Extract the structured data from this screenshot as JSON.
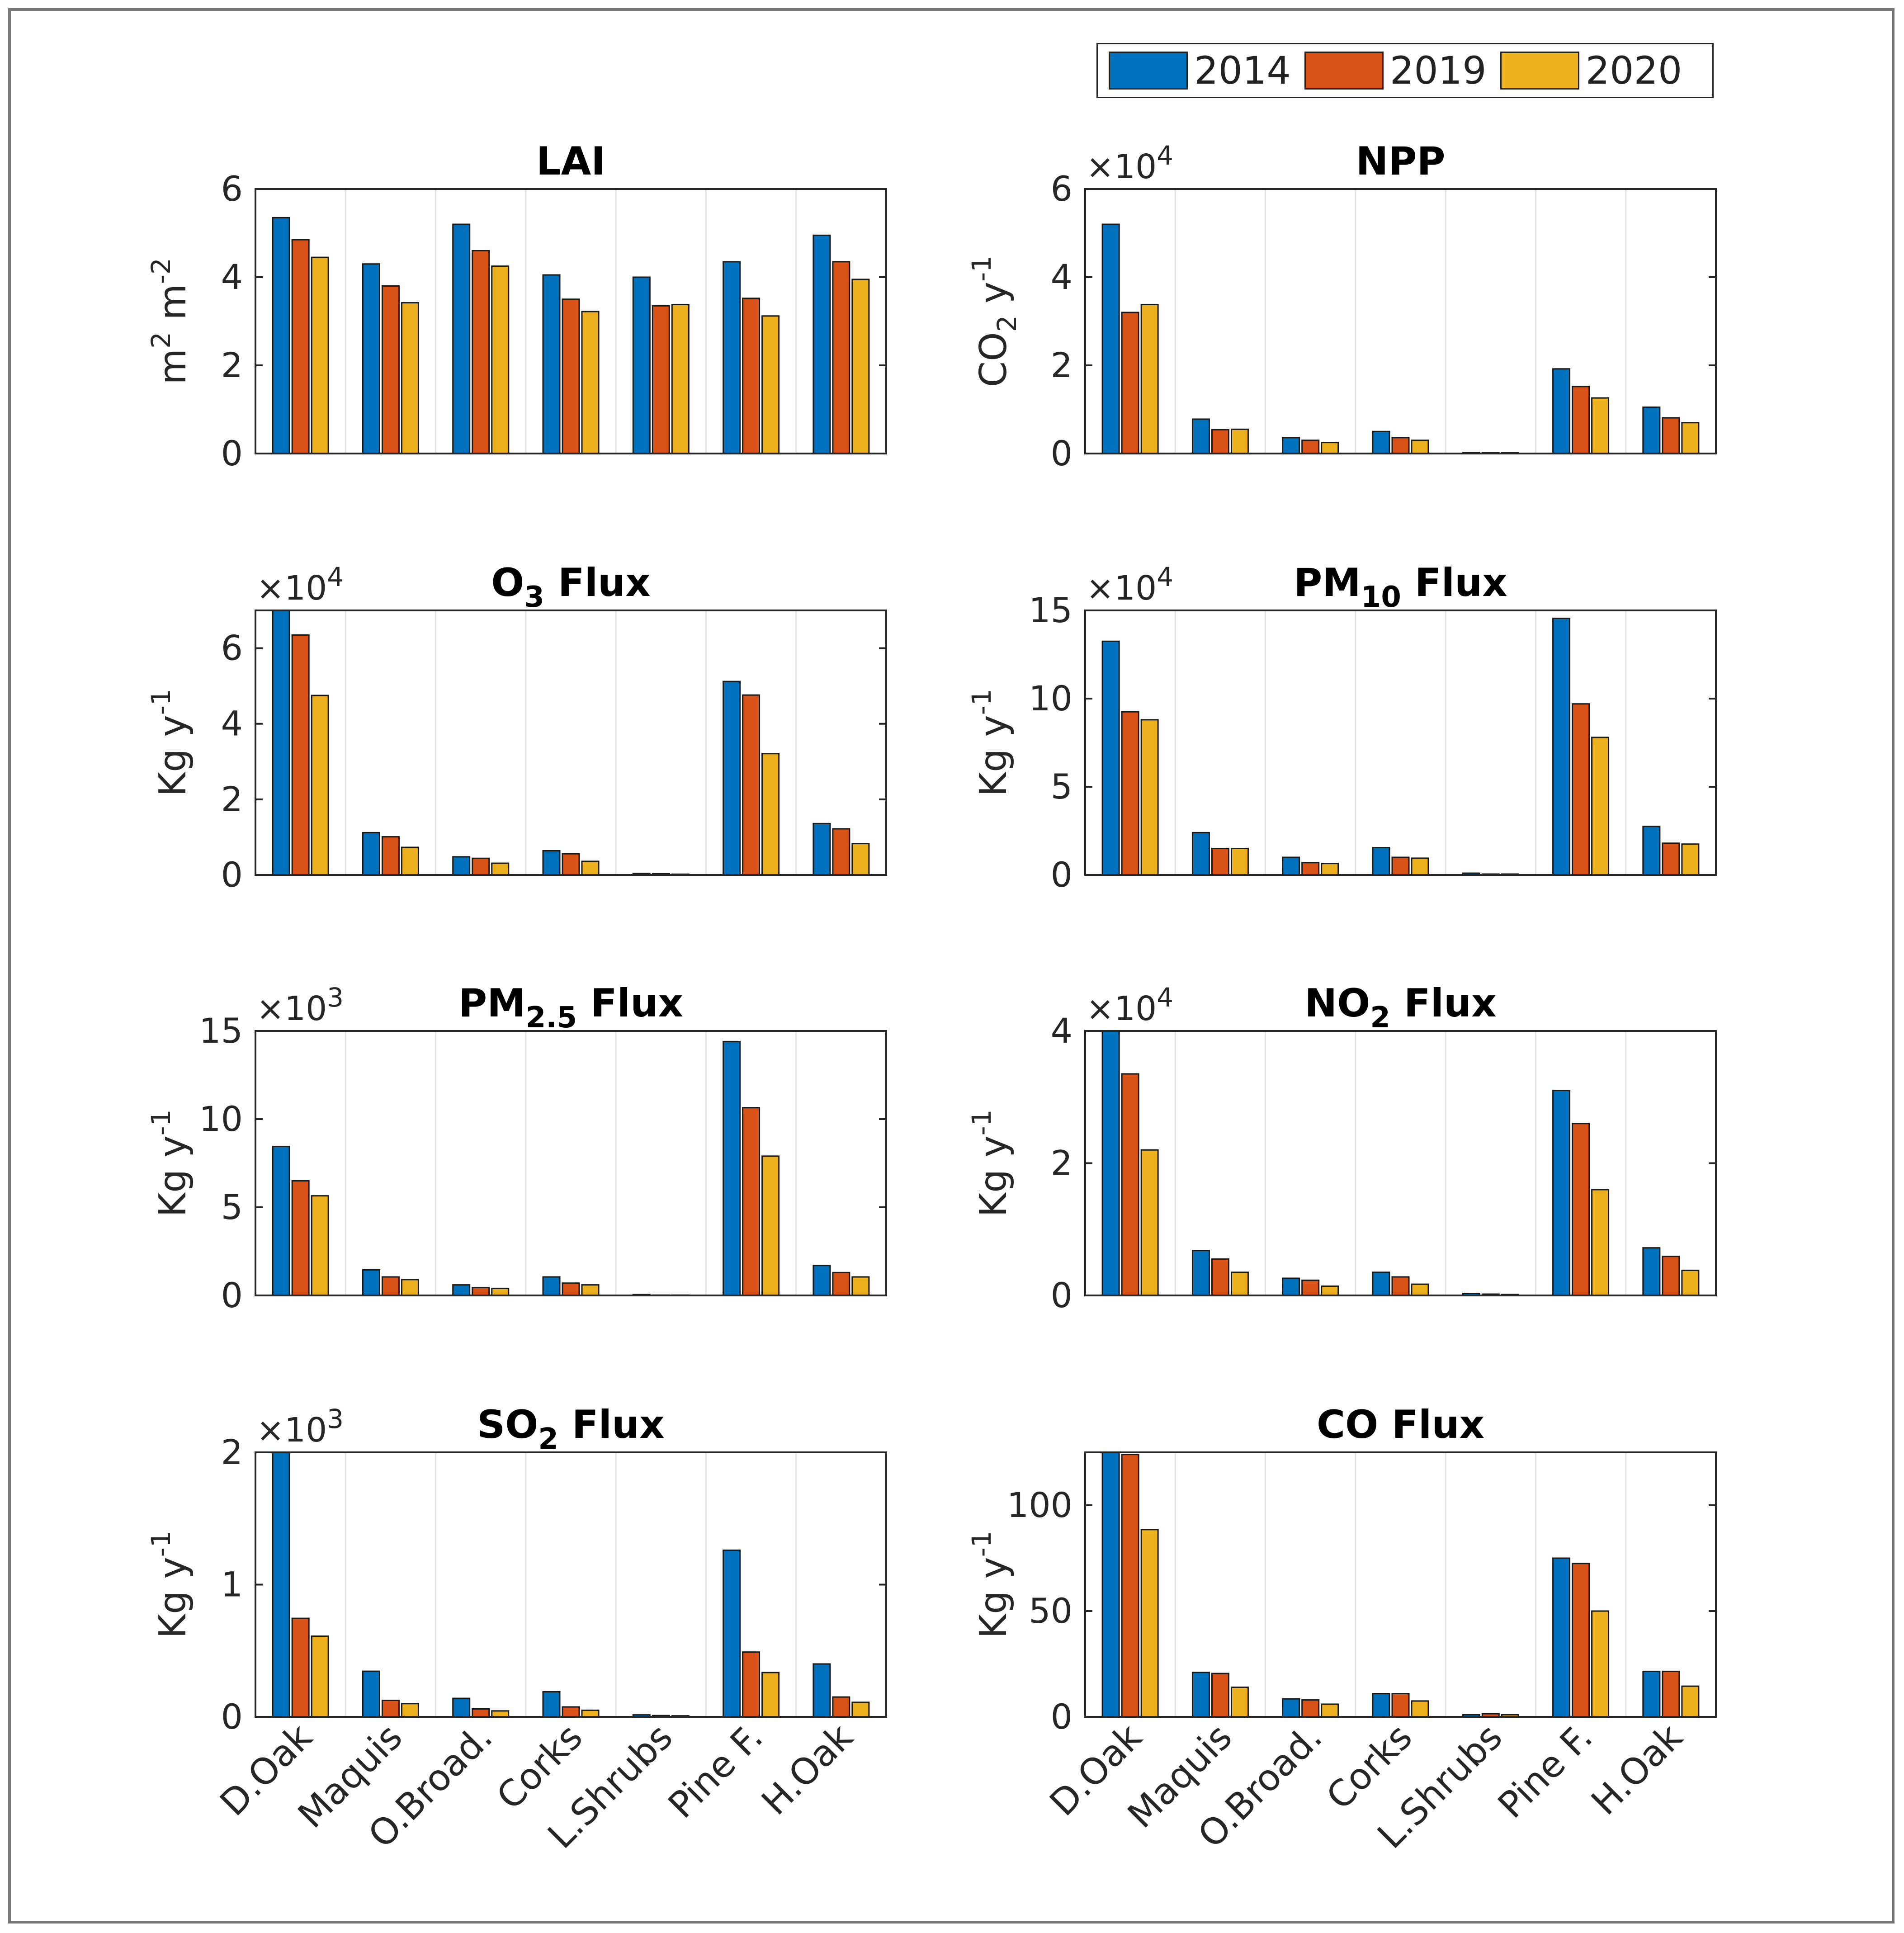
{
  "legend": {
    "placement": "top-right",
    "items": [
      {
        "label": "2014",
        "color": "#0072BD"
      },
      {
        "label": "2019",
        "color": "#D95319"
      },
      {
        "label": "2020",
        "color": "#EDB120"
      }
    ]
  },
  "chart_data": [
    {
      "type": "bar",
      "title": "LAI",
      "title_sub": "",
      "title_rest": "",
      "ylabel": "m2 m-2",
      "exponent": "",
      "ylim": [
        0,
        6
      ],
      "yticks": [
        "0",
        "2",
        "4",
        "6"
      ],
      "grid_x": true,
      "categories": [
        "D.Oak",
        "Maquis",
        "O.Broad.",
        "Corks",
        "L.Shrubs",
        "Pine F.",
        "H.Oak"
      ],
      "series": [
        {
          "name": "2014",
          "values": [
            5.35,
            4.3,
            5.2,
            4.05,
            4.0,
            4.35,
            4.95
          ]
        },
        {
          "name": "2019",
          "values": [
            4.85,
            3.8,
            4.6,
            3.5,
            3.35,
            3.52,
            4.35
          ]
        },
        {
          "name": "2020",
          "values": [
            4.45,
            3.42,
            4.25,
            3.22,
            3.38,
            3.12,
            3.95
          ]
        }
      ]
    },
    {
      "type": "bar",
      "title": "NPP",
      "title_sub": "",
      "title_rest": "",
      "ylabel": "CO2 y-1",
      "exponent": "4",
      "ylim": [
        0,
        60000
      ],
      "yticks": [
        "0",
        "2",
        "4",
        "6"
      ],
      "grid_x": true,
      "categories": [
        "D.Oak",
        "Maquis",
        "O.Broad.",
        "Corks",
        "L.Shrubs",
        "Pine F.",
        "H.Oak"
      ],
      "series": [
        {
          "name": "2014",
          "values": [
            52000,
            7800,
            3600,
            5000,
            200,
            19200,
            10500
          ]
        },
        {
          "name": "2019",
          "values": [
            32000,
            5400,
            3000,
            3600,
            150,
            15200,
            8100
          ]
        },
        {
          "name": "2020",
          "values": [
            33800,
            5500,
            2500,
            3000,
            150,
            12600,
            7000
          ]
        }
      ]
    },
    {
      "type": "bar",
      "title": "O",
      "title_sub": "3",
      "title_rest": " Flux",
      "ylabel": "Kg y-1",
      "exponent": "4",
      "ylim": [
        0,
        70000
      ],
      "yticks": [
        "0",
        "2",
        "4",
        "6"
      ],
      "grid_x": true,
      "categories": [
        "D.Oak",
        "Maquis",
        "O.Broad.",
        "Corks",
        "L.Shrubs",
        "Pine F.",
        "H.Oak"
      ],
      "series": [
        {
          "name": "2014",
          "values": [
            70000,
            11200,
            4800,
            6400,
            400,
            51200,
            13600
          ]
        },
        {
          "name": "2019",
          "values": [
            63500,
            10100,
            4400,
            5600,
            300,
            47600,
            12200
          ]
        },
        {
          "name": "2020",
          "values": [
            47500,
            7300,
            3100,
            3600,
            200,
            32100,
            8300
          ]
        }
      ]
    },
    {
      "type": "bar",
      "title": "PM",
      "title_sub": "10",
      "title_rest": " Flux",
      "ylabel": "Kg y-1",
      "exponent": "4",
      "ylim": [
        0,
        150000
      ],
      "yticks": [
        "0",
        "5",
        "10",
        "15"
      ],
      "grid_x": true,
      "categories": [
        "D.Oak",
        "Maquis",
        "O.Broad.",
        "Corks",
        "L.Shrubs",
        "Pine F.",
        "H.Oak"
      ],
      "series": [
        {
          "name": "2014",
          "values": [
            132500,
            24000,
            10000,
            15500,
            1000,
            145500,
            27500
          ]
        },
        {
          "name": "2019",
          "values": [
            92500,
            15000,
            7000,
            10000,
            500,
            97000,
            18000
          ]
        },
        {
          "name": "2020",
          "values": [
            88000,
            15000,
            6500,
            9500,
            500,
            78000,
            17500
          ]
        }
      ]
    },
    {
      "type": "bar",
      "title": "PM",
      "title_sub": "2.5",
      "title_rest": " Flux",
      "ylabel": "Kg y-1",
      "exponent": "3",
      "ylim": [
        0,
        15000
      ],
      "yticks": [
        "0",
        "5",
        "10",
        "15"
      ],
      "grid_x": true,
      "categories": [
        "D.Oak",
        "Maquis",
        "O.Broad.",
        "Corks",
        "L.Shrubs",
        "Pine F.",
        "H.Oak"
      ],
      "series": [
        {
          "name": "2014",
          "values": [
            8450,
            1450,
            600,
            1050,
            50,
            14400,
            1700
          ]
        },
        {
          "name": "2019",
          "values": [
            6500,
            1050,
            450,
            700,
            20,
            10650,
            1300
          ]
        },
        {
          "name": "2020",
          "values": [
            5650,
            900,
            400,
            600,
            20,
            7900,
            1050
          ]
        }
      ]
    },
    {
      "type": "bar",
      "title": "NO",
      "title_sub": "2",
      "title_rest": " Flux",
      "ylabel": "Kg y-1",
      "exponent": "4",
      "ylim": [
        0,
        40000
      ],
      "yticks": [
        "0",
        "2",
        "4"
      ],
      "grid_x": true,
      "categories": [
        "D.Oak",
        "Maquis",
        "O.Broad.",
        "Corks",
        "L.Shrubs",
        "Pine F.",
        "H.Oak"
      ],
      "series": [
        {
          "name": "2014",
          "values": [
            40000,
            6800,
            2600,
            3500,
            300,
            31000,
            7200
          ]
        },
        {
          "name": "2019",
          "values": [
            33500,
            5500,
            2300,
            2800,
            200,
            26000,
            5900
          ]
        },
        {
          "name": "2020",
          "values": [
            22000,
            3500,
            1400,
            1700,
            150,
            16000,
            3800
          ]
        }
      ]
    },
    {
      "type": "bar",
      "title": "SO",
      "title_sub": "2",
      "title_rest": " Flux",
      "ylabel": "Kg y-1",
      "exponent": "3",
      "ylim": [
        0,
        2000
      ],
      "yticks": [
        "0",
        "1",
        "2"
      ],
      "grid_x": true,
      "categories": [
        "D.Oak",
        "Maquis",
        "O.Broad.",
        "Corks",
        "L.Shrubs",
        "Pine F.",
        "H.Oak"
      ],
      "series": [
        {
          "name": "2014",
          "values": [
            2000,
            345,
            140,
            190,
            15,
            1260,
            400
          ]
        },
        {
          "name": "2019",
          "values": [
            745,
            125,
            60,
            75,
            10,
            490,
            150
          ]
        },
        {
          "name": "2020",
          "values": [
            610,
            100,
            45,
            50,
            8,
            335,
            110
          ]
        }
      ]
    },
    {
      "type": "bar",
      "title": "CO Flux",
      "title_sub": "",
      "title_rest": "",
      "ylabel": "Kg y-1",
      "exponent": "",
      "ylim": [
        0,
        125
      ],
      "yticks": [
        "0",
        "50",
        "100"
      ],
      "grid_x": true,
      "categories": [
        "D.Oak",
        "Maquis",
        "O.Broad.",
        "Corks",
        "L.Shrubs",
        "Pine F.",
        "H.Oak"
      ],
      "series": [
        {
          "name": "2014",
          "values": [
            125,
            21,
            8.5,
            11,
            1,
            75,
            21.5
          ]
        },
        {
          "name": "2019",
          "values": [
            124,
            20.5,
            8,
            11,
            1.5,
            72.5,
            21.5
          ]
        },
        {
          "name": "2020",
          "values": [
            88.5,
            14,
            6,
            7.5,
            1,
            50,
            14.5
          ]
        }
      ]
    }
  ]
}
